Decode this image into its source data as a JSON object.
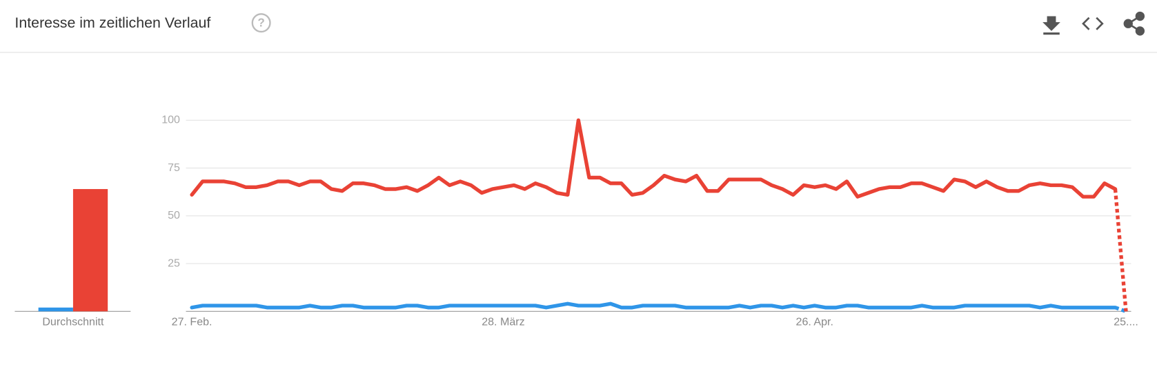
{
  "chart_data": {
    "type": "line",
    "title": "Interesse im zeitlichen Verlauf",
    "categories": [
      "27. Feb.",
      null,
      null,
      null,
      null,
      null,
      null,
      null,
      null,
      null,
      null,
      null,
      null,
      null,
      null,
      null,
      null,
      null,
      null,
      null,
      null,
      null,
      null,
      null,
      null,
      null,
      null,
      null,
      null,
      "28. März",
      null,
      null,
      null,
      null,
      null,
      null,
      null,
      null,
      null,
      null,
      null,
      null,
      null,
      null,
      null,
      null,
      null,
      null,
      null,
      null,
      null,
      null,
      null,
      null,
      null,
      null,
      null,
      null,
      "26. Apr.",
      null,
      null,
      null,
      null,
      null,
      null,
      null,
      null,
      null,
      null,
      null,
      null,
      null,
      null,
      null,
      null,
      null,
      null,
      null,
      null,
      null,
      null,
      null,
      null,
      null,
      null,
      null,
      null,
      "25...."
    ],
    "series": [
      {
        "color": "#2f95e8",
        "average": 2,
        "values": [
          2,
          3,
          3,
          3,
          3,
          3,
          3,
          2,
          2,
          2,
          2,
          3,
          2,
          2,
          3,
          3,
          2,
          2,
          2,
          2,
          3,
          3,
          2,
          2,
          3,
          3,
          3,
          3,
          3,
          3,
          3,
          3,
          3,
          2,
          3,
          4,
          3,
          3,
          3,
          4,
          2,
          2,
          3,
          3,
          3,
          3,
          2,
          2,
          2,
          2,
          2,
          3,
          2,
          3,
          3,
          2,
          3,
          2,
          3,
          2,
          2,
          3,
          3,
          2,
          2,
          2,
          2,
          2,
          3,
          2,
          2,
          2,
          3,
          3,
          3,
          3,
          3,
          3,
          3,
          2,
          3,
          2,
          2,
          2,
          2,
          2,
          2,
          0
        ]
      },
      {
        "color": "#e94235",
        "average": 64,
        "values": [
          61,
          68,
          68,
          68,
          67,
          65,
          65,
          66,
          68,
          68,
          66,
          68,
          68,
          64,
          63,
          67,
          67,
          66,
          64,
          64,
          65,
          63,
          66,
          70,
          66,
          68,
          66,
          62,
          64,
          65,
          66,
          64,
          67,
          65,
          62,
          61,
          100,
          70,
          70,
          67,
          67,
          61,
          62,
          66,
          71,
          69,
          68,
          71,
          63,
          63,
          69,
          69,
          69,
          69,
          66,
          64,
          61,
          66,
          65,
          66,
          64,
          68,
          60,
          62,
          64,
          65,
          65,
          67,
          67,
          65,
          63,
          69,
          68,
          65,
          68,
          65,
          63,
          63,
          66,
          67,
          66,
          66,
          65,
          60,
          60,
          67,
          64,
          0
        ]
      }
    ],
    "average_label": "Durchschnitt",
    "ylim": [
      0,
      100
    ],
    "yticks": [
      25,
      50,
      75,
      100
    ],
    "grid": true
  }
}
